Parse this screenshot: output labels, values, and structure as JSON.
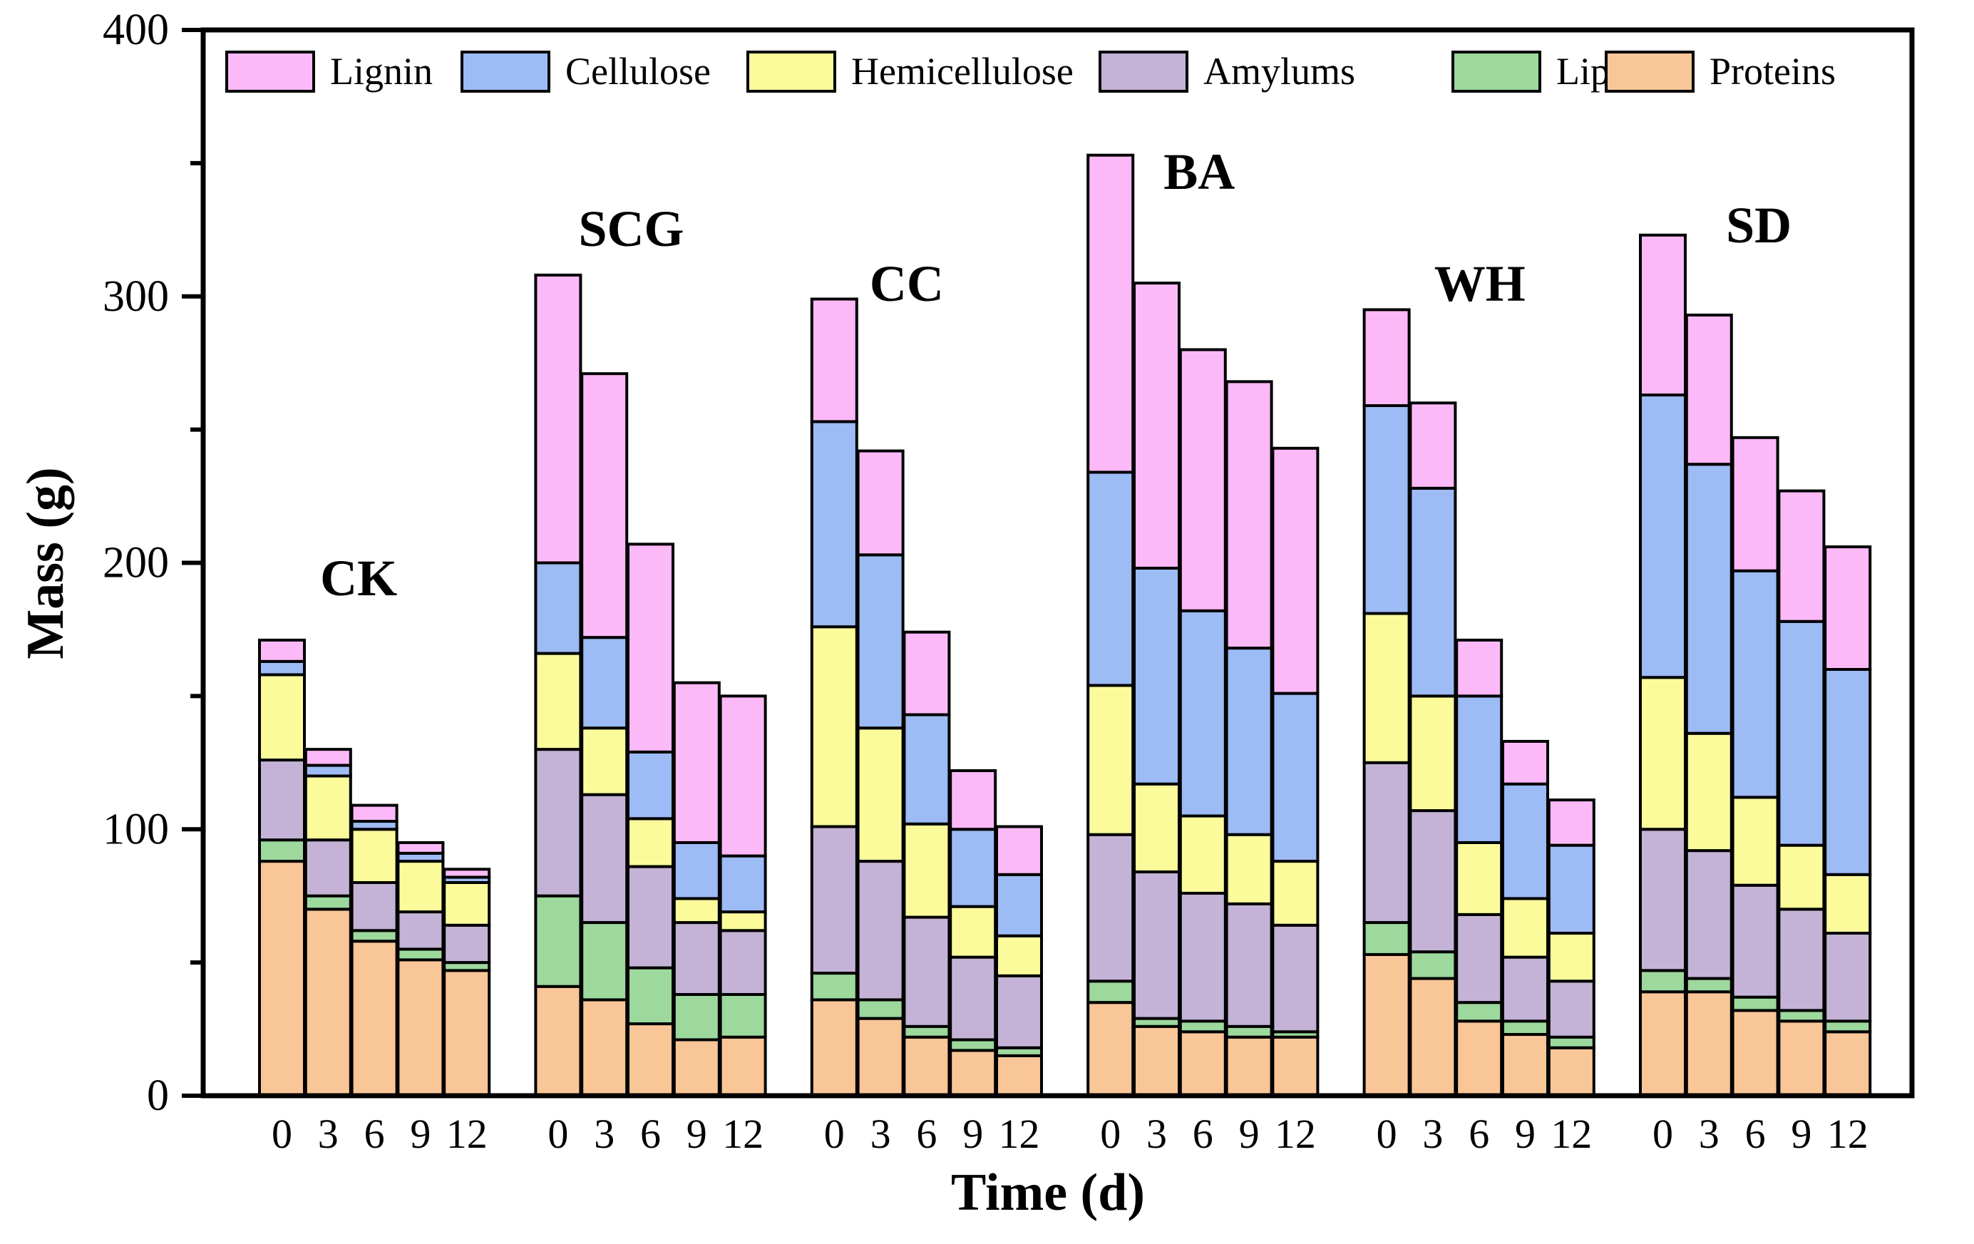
{
  "chart_data": {
    "type": "bar",
    "stacked": true,
    "title": "",
    "xlabel": "Time (d)",
    "ylabel": "Mass (g)",
    "ylim": [
      0,
      400
    ],
    "yticks": [
      0,
      100,
      200,
      300,
      400
    ],
    "time_points": [
      "0",
      "3",
      "6",
      "9",
      "12"
    ],
    "legend_position": "top",
    "components": [
      {
        "name": "Lignin",
        "color": "#FBB9F7"
      },
      {
        "name": "Cellulose",
        "color": "#9DBBF4"
      },
      {
        "name": "Hemicellulose",
        "color": "#FBFB9C"
      },
      {
        "name": "Amylums",
        "color": "#C5B3D7"
      },
      {
        "name": "Lipids",
        "color": "#9DD89D"
      },
      {
        "name": "Proteins",
        "color": "#F9C698"
      }
    ],
    "stack_order": [
      "Proteins",
      "Lipids",
      "Amylums",
      "Hemicellulose",
      "Cellulose",
      "Lignin"
    ],
    "groups": [
      {
        "label": "CK",
        "bars": [
          {
            "Proteins": 88,
            "Lipids": 8,
            "Amylums": 30,
            "Hemicellulose": 32,
            "Cellulose": 5,
            "Lignin": 8
          },
          {
            "Proteins": 70,
            "Lipids": 5,
            "Amylums": 21,
            "Hemicellulose": 24,
            "Cellulose": 4,
            "Lignin": 6
          },
          {
            "Proteins": 58,
            "Lipids": 4,
            "Amylums": 18,
            "Hemicellulose": 20,
            "Cellulose": 3,
            "Lignin": 6
          },
          {
            "Proteins": 51,
            "Lipids": 4,
            "Amylums": 14,
            "Hemicellulose": 19,
            "Cellulose": 3,
            "Lignin": 4
          },
          {
            "Proteins": 47,
            "Lipids": 3,
            "Amylums": 14,
            "Hemicellulose": 16,
            "Cellulose": 2,
            "Lignin": 3
          }
        ]
      },
      {
        "label": "SCG",
        "bars": [
          {
            "Proteins": 41,
            "Lipids": 34,
            "Amylums": 55,
            "Hemicellulose": 36,
            "Cellulose": 34,
            "Lignin": 108
          },
          {
            "Proteins": 36,
            "Lipids": 29,
            "Amylums": 48,
            "Hemicellulose": 25,
            "Cellulose": 34,
            "Lignin": 99
          },
          {
            "Proteins": 27,
            "Lipids": 21,
            "Amylums": 38,
            "Hemicellulose": 18,
            "Cellulose": 25,
            "Lignin": 78
          },
          {
            "Proteins": 21,
            "Lipids": 17,
            "Amylums": 27,
            "Hemicellulose": 9,
            "Cellulose": 21,
            "Lignin": 60
          },
          {
            "Proteins": 22,
            "Lipids": 16,
            "Amylums": 24,
            "Hemicellulose": 7,
            "Cellulose": 21,
            "Lignin": 60
          }
        ]
      },
      {
        "label": "CC",
        "bars": [
          {
            "Proteins": 36,
            "Lipids": 10,
            "Amylums": 55,
            "Hemicellulose": 75,
            "Cellulose": 77,
            "Lignin": 46
          },
          {
            "Proteins": 29,
            "Lipids": 7,
            "Amylums": 52,
            "Hemicellulose": 50,
            "Cellulose": 65,
            "Lignin": 39
          },
          {
            "Proteins": 22,
            "Lipids": 4,
            "Amylums": 41,
            "Hemicellulose": 35,
            "Cellulose": 41,
            "Lignin": 31
          },
          {
            "Proteins": 17,
            "Lipids": 4,
            "Amylums": 31,
            "Hemicellulose": 19,
            "Cellulose": 29,
            "Lignin": 22
          },
          {
            "Proteins": 15,
            "Lipids": 3,
            "Amylums": 27,
            "Hemicellulose": 15,
            "Cellulose": 23,
            "Lignin": 18
          }
        ]
      },
      {
        "label": "BA",
        "bars": [
          {
            "Proteins": 35,
            "Lipids": 8,
            "Amylums": 55,
            "Hemicellulose": 56,
            "Cellulose": 80,
            "Lignin": 119
          },
          {
            "Proteins": 26,
            "Lipids": 3,
            "Amylums": 55,
            "Hemicellulose": 33,
            "Cellulose": 81,
            "Lignin": 107
          },
          {
            "Proteins": 24,
            "Lipids": 4,
            "Amylums": 48,
            "Hemicellulose": 29,
            "Cellulose": 77,
            "Lignin": 98
          },
          {
            "Proteins": 22,
            "Lipids": 4,
            "Amylums": 46,
            "Hemicellulose": 26,
            "Cellulose": 70,
            "Lignin": 100
          },
          {
            "Proteins": 22,
            "Lipids": 2,
            "Amylums": 40,
            "Hemicellulose": 24,
            "Cellulose": 63,
            "Lignin": 92
          }
        ]
      },
      {
        "label": "WH",
        "bars": [
          {
            "Proteins": 53,
            "Lipids": 12,
            "Amylums": 60,
            "Hemicellulose": 56,
            "Cellulose": 78,
            "Lignin": 36
          },
          {
            "Proteins": 44,
            "Lipids": 10,
            "Amylums": 53,
            "Hemicellulose": 43,
            "Cellulose": 78,
            "Lignin": 32
          },
          {
            "Proteins": 28,
            "Lipids": 7,
            "Amylums": 33,
            "Hemicellulose": 27,
            "Cellulose": 55,
            "Lignin": 21
          },
          {
            "Proteins": 23,
            "Lipids": 5,
            "Amylums": 24,
            "Hemicellulose": 22,
            "Cellulose": 43,
            "Lignin": 16
          },
          {
            "Proteins": 18,
            "Lipids": 4,
            "Amylums": 21,
            "Hemicellulose": 18,
            "Cellulose": 33,
            "Lignin": 17
          }
        ]
      },
      {
        "label": "SD",
        "bars": [
          {
            "Proteins": 39,
            "Lipids": 8,
            "Amylums": 53,
            "Hemicellulose": 57,
            "Cellulose": 106,
            "Lignin": 60
          },
          {
            "Proteins": 39,
            "Lipids": 5,
            "Amylums": 48,
            "Hemicellulose": 44,
            "Cellulose": 101,
            "Lignin": 56
          },
          {
            "Proteins": 32,
            "Lipids": 5,
            "Amylums": 42,
            "Hemicellulose": 33,
            "Cellulose": 85,
            "Lignin": 50
          },
          {
            "Proteins": 28,
            "Lipids": 4,
            "Amylums": 38,
            "Hemicellulose": 24,
            "Cellulose": 84,
            "Lignin": 49
          },
          {
            "Proteins": 24,
            "Lipids": 4,
            "Amylums": 33,
            "Hemicellulose": 22,
            "Cellulose": 77,
            "Lignin": 46
          }
        ]
      }
    ]
  }
}
